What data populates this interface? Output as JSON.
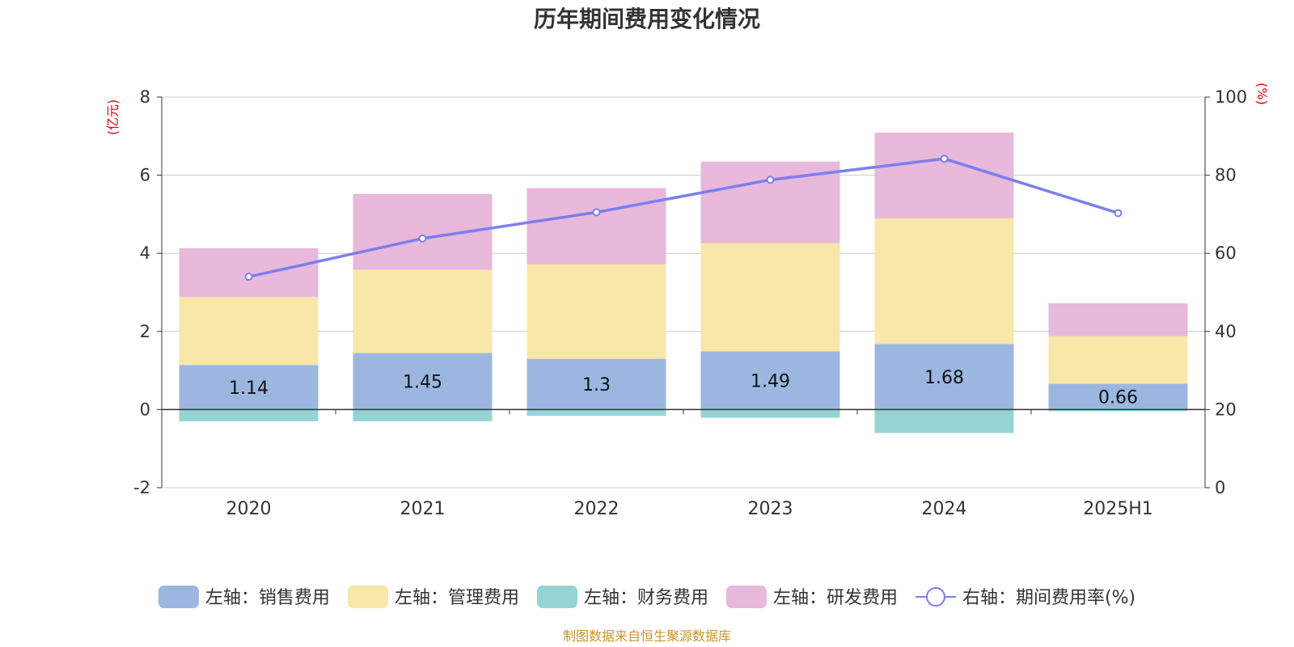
{
  "chart_data": {
    "type": "bar",
    "title": "历年期间费用变化情况",
    "categories": [
      "2020",
      "2021",
      "2022",
      "2023",
      "2024",
      "2025H1"
    ],
    "left_axis": {
      "unit": "(亿元)",
      "ylim": [
        -2,
        8
      ],
      "ticks": [
        -2,
        0,
        2,
        4,
        6,
        8
      ]
    },
    "right_axis": {
      "unit": "(%)",
      "ylim": [
        0,
        100
      ],
      "ticks": [
        0,
        20,
        40,
        60,
        80,
        100
      ]
    },
    "series": [
      {
        "name": "左轴：销售费用",
        "axis": "left",
        "stack": "costs",
        "color": "#9bb7e0",
        "values": [
          1.14,
          1.45,
          1.3,
          1.49,
          1.68,
          0.66
        ],
        "show_labels": true
      },
      {
        "name": "左轴：管理费用",
        "axis": "left",
        "stack": "costs",
        "color": "#f8e7a8",
        "values": [
          1.74,
          2.13,
          2.42,
          2.77,
          3.21,
          1.22
        ],
        "show_labels": false
      },
      {
        "name": "左轴：财务费用",
        "axis": "left",
        "stack": "costs",
        "color": "#96d4d4",
        "values": [
          -0.3,
          -0.3,
          -0.16,
          -0.21,
          -0.6,
          -0.04
        ],
        "show_labels": false
      },
      {
        "name": "左轴：研发费用",
        "axis": "left",
        "stack": "costs",
        "color": "#e8b9da",
        "values": [
          1.25,
          1.94,
          1.95,
          2.09,
          2.2,
          0.84
        ],
        "show_labels": false
      },
      {
        "name": "右轴：期间费用率(%)",
        "axis": "right",
        "type": "line",
        "color": "#7b7ff0",
        "values": [
          54.0,
          63.8,
          70.5,
          78.8,
          84.2,
          70.3
        ]
      }
    ],
    "grid": true,
    "legend_position": "bottom"
  },
  "source": "制图数据来自恒生聚源数据库"
}
